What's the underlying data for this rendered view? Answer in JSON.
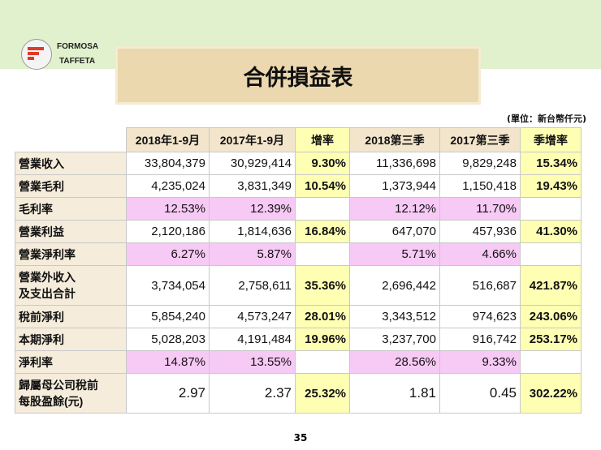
{
  "logo": {
    "line1": "FORMOSA",
    "line2": "TAFFETA",
    "brand_color": "#e03a2a"
  },
  "title": "合併損益表",
  "unit": "(單位：新台幣仟元)",
  "headers": [
    "2018年1-9月",
    "2017年1-9月",
    "增率",
    "2018第三季",
    "2017第三季",
    "季增率"
  ],
  "rows": [
    {
      "label": "營業收入",
      "values": [
        "33,804,379",
        "30,929,414",
        "9.30%",
        "11,336,698",
        "9,829,248",
        "15.34%"
      ]
    },
    {
      "label": "營業毛利",
      "values": [
        "4,235,024",
        "3,831,349",
        "10.54%",
        "1,373,944",
        "1,150,418",
        "19.43%"
      ]
    },
    {
      "label": "毛利率",
      "values": [
        "12.53%",
        "12.39%",
        "",
        "12.12%",
        "11.70%",
        ""
      ]
    },
    {
      "label": "營業利益",
      "values": [
        "2,120,186",
        "1,814,636",
        "16.84%",
        "647,070",
        "457,936",
        "41.30%"
      ]
    },
    {
      "label": "營業淨利率",
      "values": [
        "6.27%",
        "5.87%",
        "",
        "5.71%",
        "4.66%",
        ""
      ]
    },
    {
      "label": "營業外收入\n及支出合計",
      "values": [
        "3,734,054",
        "2,758,611",
        "35.36%",
        "2,696,442",
        "516,687",
        "421.87%"
      ]
    },
    {
      "label": "稅前淨利",
      "values": [
        "5,854,240",
        "4,573,247",
        "28.01%",
        "3,343,512",
        "974,623",
        "243.06%"
      ]
    },
    {
      "label": "本期淨利",
      "values": [
        "5,028,203",
        "4,191,484",
        "19.96%",
        "3,237,700",
        "916,742",
        "253.17%"
      ]
    },
    {
      "label": "淨利率",
      "values": [
        "14.87%",
        "13.55%",
        "",
        "28.56%",
        "9.33%",
        ""
      ]
    },
    {
      "label": "歸屬母公司稅前\n每股盈餘(元)",
      "values": [
        "2.97",
        "2.37",
        "25.32%",
        "1.81",
        "0.45",
        "302.22%"
      ]
    }
  ],
  "page_number": "35",
  "colors": {
    "header": "#f2e5cc",
    "growth": "#ffffb4",
    "ratio": "#f7c9f5",
    "band": "#e1f0cd",
    "title_box": "#ecd8af"
  }
}
